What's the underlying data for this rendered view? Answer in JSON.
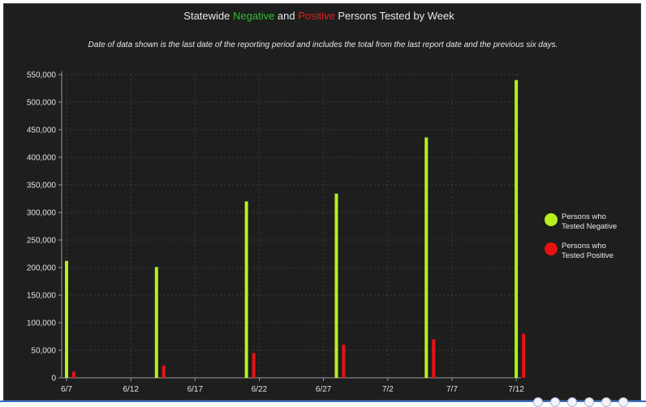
{
  "title": {
    "prefix": "Statewide ",
    "negative_word": "Negative",
    "middle": " and ",
    "positive_word": "Positive",
    "suffix": " Persons Tested by Week"
  },
  "note": "Date of data shown is the last date of the reporting period and includes the total from the last report date and the previous six days.",
  "colors": {
    "negative": "#b7f01f",
    "positive": "#e81212",
    "neg_title": "#2fbf2f",
    "pos_title": "#e02020"
  },
  "chart_data": {
    "type": "bar",
    "title": "Statewide Negative and Positive Persons Tested by Week",
    "ylim": [
      0,
      550000
    ],
    "yticks": [
      0,
      50000,
      100000,
      150000,
      200000,
      250000,
      300000,
      350000,
      400000,
      450000,
      500000,
      550000
    ],
    "ytick_labels": [
      "0",
      "50,000",
      "100,000",
      "150,000",
      "200,000",
      "250,000",
      "300,000",
      "350,000",
      "400,000",
      "450,000",
      "500,000",
      "550,000"
    ],
    "xticks": [
      "6/7",
      "6/12",
      "6/17",
      "6/22",
      "6/27",
      "7/2",
      "7/7",
      "7/12"
    ],
    "grid": true,
    "legend_position": "right",
    "categories": [
      "6/7",
      "6/14",
      "6/21",
      "6/28",
      "7/5",
      "7/12"
    ],
    "series": [
      {
        "name": "Persons who Tested Negative",
        "values": [
          212000,
          201000,
          320000,
          334000,
          436000,
          540000
        ]
      },
      {
        "name": "Persons who Tested Positive",
        "values": [
          11000,
          22000,
          45000,
          60000,
          70000,
          80000
        ]
      }
    ]
  },
  "legend": [
    {
      "label": "Persons who Tested Negative",
      "color": "#b7f01f"
    },
    {
      "label": "Persons who Tested Positive",
      "color": "#e81212"
    }
  ]
}
